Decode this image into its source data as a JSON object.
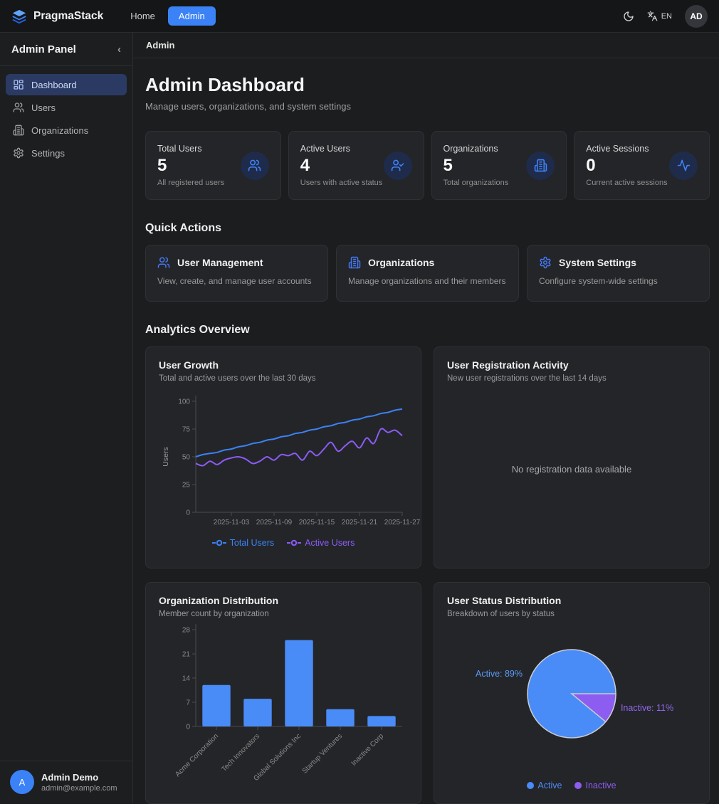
{
  "navbar": {
    "brand": "PragmaStack",
    "links": [
      {
        "label": "Home",
        "active": false
      },
      {
        "label": "Admin",
        "active": true
      }
    ],
    "language": "EN",
    "avatar_initials": "AD"
  },
  "sidebar": {
    "title": "Admin Panel",
    "collapse_icon": "‹",
    "items": [
      {
        "label": "Dashboard",
        "icon": "dashboard-icon",
        "active": true
      },
      {
        "label": "Users",
        "icon": "users-icon",
        "active": false
      },
      {
        "label": "Organizations",
        "icon": "building-icon",
        "active": false
      },
      {
        "label": "Settings",
        "icon": "gear-icon",
        "active": false
      }
    ],
    "user": {
      "initial": "A",
      "name": "Admin Demo",
      "email": "admin@example.com"
    }
  },
  "breadcrumb": "Admin",
  "header": {
    "title": "Admin Dashboard",
    "subtitle": "Manage users, organizations, and system settings"
  },
  "stats": [
    {
      "label": "Total Users",
      "value": "5",
      "description": "All registered users",
      "icon": "users-icon"
    },
    {
      "label": "Active Users",
      "value": "4",
      "description": "Users with active status",
      "icon": "user-check-icon"
    },
    {
      "label": "Organizations",
      "value": "5",
      "description": "Total organizations",
      "icon": "building-icon"
    },
    {
      "label": "Active Sessions",
      "value": "0",
      "description": "Current active sessions",
      "icon": "activity-icon"
    }
  ],
  "quick_actions": {
    "heading": "Quick Actions",
    "cards": [
      {
        "title": "User Management",
        "description": "View, create, and manage user accounts",
        "icon": "users-icon"
      },
      {
        "title": "Organizations",
        "description": "Manage organizations and their members",
        "icon": "building-icon"
      },
      {
        "title": "System Settings",
        "description": "Configure system-wide settings",
        "icon": "gear-icon"
      }
    ]
  },
  "analytics": {
    "heading": "Analytics Overview",
    "cards": [
      {
        "title": "User Growth",
        "subtitle": "Total and active users over the last 30 days"
      },
      {
        "title": "User Registration Activity",
        "subtitle": "New user registrations over the last 14 days",
        "empty_text": "No registration data available"
      },
      {
        "title": "Organization Distribution",
        "subtitle": "Member count by organization"
      },
      {
        "title": "User Status Distribution",
        "subtitle": "Breakdown of users by status"
      }
    ]
  },
  "chart_data": [
    {
      "type": "line",
      "title": "User Growth",
      "ylabel": "Users",
      "ylim": [
        0,
        100
      ],
      "yticks": [
        0,
        25,
        50,
        75,
        100
      ],
      "xtick_labels": [
        "2025-11-03",
        "2025-11-09",
        "2025-11-15",
        "2025-11-21",
        "2025-11-27"
      ],
      "xtick_indices": [
        5,
        11,
        17,
        23,
        29
      ],
      "series": [
        {
          "name": "Total Users",
          "color": "#3b82f6",
          "values": [
            50,
            52,
            53,
            54,
            56,
            57,
            59,
            60,
            62,
            63,
            65,
            66,
            68,
            69,
            71,
            72,
            74,
            75,
            77,
            78,
            80,
            81,
            83,
            84,
            86,
            87,
            89,
            90,
            92,
            93
          ]
        },
        {
          "name": "Active Users",
          "color": "#8b5cf6",
          "values": [
            44,
            42,
            46,
            43,
            47,
            49,
            50,
            48,
            44,
            46,
            50,
            47,
            52,
            51,
            53,
            47,
            55,
            51,
            57,
            63,
            55,
            60,
            64,
            58,
            67,
            62,
            75,
            72,
            74,
            69
          ]
        }
      ],
      "legend_position": "bottom"
    },
    {
      "type": "none",
      "title": "User Registration Activity",
      "note": "No registration data available"
    },
    {
      "type": "bar",
      "title": "Organization Distribution",
      "categories": [
        "Acme Corporation",
        "Tech Innovators",
        "Global Solutions Inc",
        "Startup Ventures",
        "Inactive Corp"
      ],
      "values": [
        12,
        8,
        25,
        5,
        3
      ],
      "ylim": [
        0,
        28
      ],
      "yticks": [
        0,
        7,
        14,
        21,
        28
      ],
      "bar_color": "#4a8cf7"
    },
    {
      "type": "pie",
      "title": "User Status Distribution",
      "slices": [
        {
          "label": "Active",
          "pct": 89,
          "color": "#4a8cf7",
          "callout": "Active: 89%",
          "callout_color": "#5b9bf8"
        },
        {
          "label": "Inactive",
          "pct": 11,
          "color": "#8d5cf0",
          "callout": "Inactive: 11%",
          "callout_color": "#9268f0"
        }
      ],
      "legend_position": "bottom"
    }
  ],
  "colors": {
    "accent_blue": "#3b82f6",
    "accent_purple": "#8b5cf6",
    "card_bg": "#242528",
    "page_bg": "#1c1d1f",
    "active_item_bg": "#2a3a63"
  }
}
